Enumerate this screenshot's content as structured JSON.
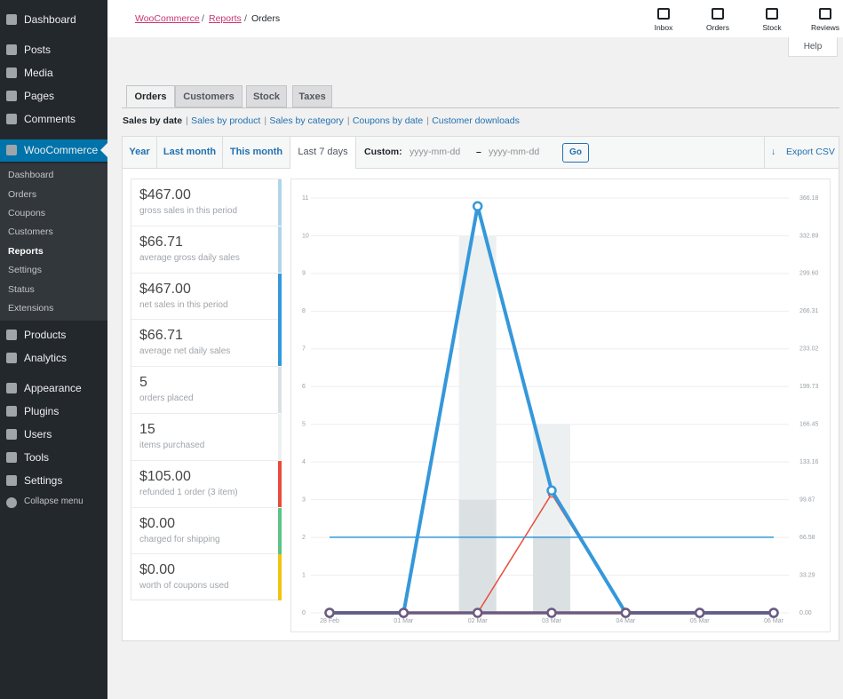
{
  "menu": [
    "Dashboard",
    "Posts",
    "Media",
    "Pages",
    "Comments",
    "WooCommerce",
    "Products",
    "Analytics",
    "Appearance",
    "Plugins",
    "Users",
    "Tools",
    "Settings",
    "Collapse menu"
  ],
  "submenu": [
    "Dashboard",
    "Orders",
    "Coupons",
    "Customers",
    "Reports",
    "Settings",
    "Status",
    "Extensions"
  ],
  "breadcrumb": {
    "links": [
      "WooCommerce",
      "Reports"
    ],
    "current": "Orders"
  },
  "toolbar": [
    "Inbox",
    "Orders",
    "Stock",
    "Reviews"
  ],
  "help": "Help",
  "tabs": [
    "Orders",
    "Customers",
    "Stock",
    "Taxes"
  ],
  "subnav": [
    "Sales by date",
    "Sales by product",
    "Sales by category",
    "Coupons by date",
    "Customer downloads"
  ],
  "ranges": [
    "Year",
    "Last month",
    "This month",
    "Last 7 days"
  ],
  "custom": {
    "label": "Custom:",
    "from": "yyyy-mm-dd",
    "separator": "–",
    "to": "yyyy-mm-dd",
    "button": "Go"
  },
  "export": "Export CSV",
  "summary": [
    {
      "amount": "$467.00",
      "label": "gross sales in this period",
      "color": "#b1d4ea"
    },
    {
      "amount": "$66.71",
      "label": "average gross daily sales",
      "color": "#b1d4ea"
    },
    {
      "amount": "$467.00",
      "label": "net sales in this period",
      "color": "#3498db"
    },
    {
      "amount": "$66.71",
      "label": "average net daily sales",
      "color": "#3498db"
    },
    {
      "amount": "5",
      "label": "orders placed",
      "color": "#dbe1e3"
    },
    {
      "amount": "15",
      "label": "items purchased",
      "color": "#ecf0f1"
    },
    {
      "amount": "$105.00",
      "label": "refunded 1 order (3 item)",
      "color": "#e74c3c"
    },
    {
      "amount": "$0.00",
      "label": "charged for shipping",
      "color": "#5cc488"
    },
    {
      "amount": "$0.00",
      "label": "worth of coupons used",
      "color": "#f1c40f"
    }
  ],
  "chart_data": {
    "type": "line",
    "categories": [
      "28 Feb",
      "01 Mar",
      "02 Mar",
      "03 Mar",
      "04 Mar",
      "05 Mar",
      "06 Mar"
    ],
    "ylim": [
      0,
      11.4
    ],
    "yticks": [
      0,
      1,
      2,
      3,
      4,
      5,
      6,
      7,
      8,
      9,
      10,
      11
    ],
    "y2lim": [
      0,
      379.5
    ],
    "y2ticks": [
      {
        "value": 0,
        "label": "0.00"
      },
      {
        "value": 33.29,
        "label": "33.29"
      },
      {
        "value": 66.58,
        "label": "66.58"
      },
      {
        "value": 99.87,
        "label": "99.87"
      },
      {
        "value": 133.16,
        "label": "133.16"
      },
      {
        "value": 166.45,
        "label": "166.45"
      },
      {
        "value": 199.73,
        "label": "199.73"
      },
      {
        "value": 233.02,
        "label": "233.02"
      },
      {
        "value": 266.31,
        "label": "266.31"
      },
      {
        "value": 299.6,
        "label": "299.60"
      },
      {
        "value": 332.89,
        "label": "332.89"
      },
      {
        "value": 366.18,
        "label": "366.18"
      }
    ],
    "grid": true,
    "series": [
      {
        "type": "bar",
        "color": "#ecf0f1",
        "values": [
          0,
          0,
          10,
          5,
          0,
          0,
          0
        ]
      },
      {
        "type": "bar",
        "color": "#dbe1e3",
        "values": [
          0,
          0,
          3,
          2,
          0,
          0,
          0
        ]
      },
      {
        "type": "line",
        "axis": "y2",
        "color": "#5cc488",
        "markers": true,
        "values": [
          0,
          0,
          0,
          0,
          0,
          0,
          0
        ]
      },
      {
        "type": "line",
        "axis": "y2",
        "color": "#e74c3c",
        "markers": true,
        "values": [
          0,
          0,
          0,
          105,
          0,
          0,
          0
        ]
      },
      {
        "type": "line",
        "axis": "y2",
        "color": "#3498db",
        "markers": false,
        "values": [
          66.71,
          66.71,
          66.71,
          66.71,
          66.71,
          66.71,
          66.71
        ]
      },
      {
        "type": "line",
        "axis": "y2",
        "color": "#3498db",
        "markers": true,
        "values": [
          0,
          0,
          359,
          108,
          0,
          0,
          0
        ]
      },
      {
        "type": "line",
        "axis": "y2",
        "color": "#6d5a7f",
        "markers": true,
        "values": [
          0,
          0,
          0,
          0,
          0,
          0,
          0
        ]
      }
    ]
  }
}
